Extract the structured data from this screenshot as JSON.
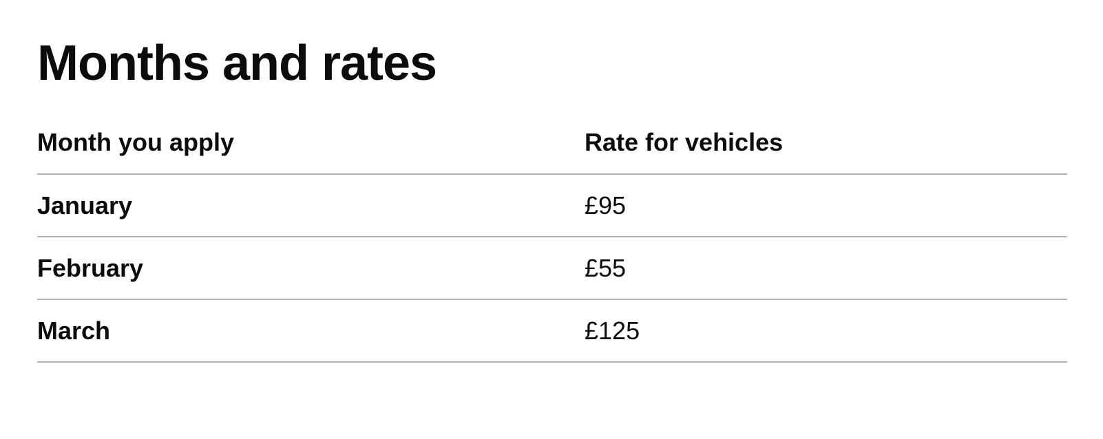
{
  "table": {
    "caption": "Months and rates",
    "headers": {
      "month": "Month you apply",
      "rate": "Rate for vehicles"
    },
    "rows": [
      {
        "month": "January",
        "rate": "£95"
      },
      {
        "month": "February",
        "rate": "£55"
      },
      {
        "month": "March",
        "rate": "£125"
      }
    ]
  }
}
